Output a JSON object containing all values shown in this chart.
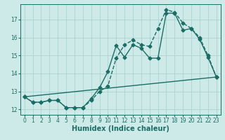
{
  "title": "",
  "xlabel": "Humidex (Indice chaleur)",
  "ylabel": "",
  "bg_color": "#ceeae8",
  "grid_color": "#a8d4d2",
  "line_color": "#1a6e65",
  "xlim": [
    -0.5,
    23.5
  ],
  "ylim": [
    11.7,
    17.85
  ],
  "yticks": [
    12,
    13,
    14,
    15,
    16,
    17
  ],
  "xticks": [
    0,
    1,
    2,
    3,
    4,
    5,
    6,
    7,
    8,
    9,
    10,
    11,
    12,
    13,
    14,
    15,
    16,
    17,
    18,
    19,
    20,
    21,
    22,
    23
  ],
  "series1_x": [
    0,
    1,
    2,
    3,
    4,
    5,
    6,
    7,
    8,
    9,
    10,
    11,
    12,
    13,
    14,
    15,
    16,
    17,
    18,
    19,
    20,
    21,
    22,
    23
  ],
  "series1_y": [
    12.7,
    12.4,
    12.4,
    12.5,
    12.5,
    12.1,
    12.1,
    12.1,
    12.6,
    13.2,
    14.1,
    15.55,
    14.9,
    15.6,
    15.4,
    14.85,
    14.85,
    17.35,
    17.35,
    16.4,
    16.5,
    15.9,
    14.9,
    13.8
  ],
  "series2_x": [
    0,
    1,
    2,
    3,
    4,
    5,
    6,
    7,
    8,
    9,
    10,
    11,
    12,
    13,
    14,
    15,
    16,
    17,
    18,
    19,
    20,
    21,
    22,
    23
  ],
  "series2_y": [
    12.7,
    12.4,
    12.4,
    12.5,
    12.5,
    12.1,
    12.1,
    12.1,
    12.5,
    13.0,
    13.3,
    14.85,
    15.6,
    15.85,
    15.6,
    15.5,
    16.5,
    17.55,
    17.4,
    16.8,
    16.5,
    16.0,
    15.0,
    13.8
  ],
  "series3_x": [
    0,
    23
  ],
  "series3_y": [
    12.7,
    13.8
  ],
  "marker_size": 2.5,
  "line_width": 1.0,
  "tick_fontsize": 5.5,
  "xlabel_fontsize": 7.0
}
